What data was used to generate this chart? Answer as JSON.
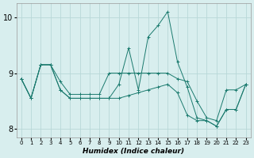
{
  "xlabel": "Humidex (Indice chaleur)",
  "bg_color": "#d8eeee",
  "grid_color": "#b8d8d8",
  "line_color": "#1a7a6e",
  "xlim": [
    -0.5,
    23.5
  ],
  "ylim": [
    7.85,
    10.25
  ],
  "yticks": [
    8,
    9,
    10
  ],
  "xticks": [
    0,
    1,
    2,
    3,
    4,
    5,
    6,
    7,
    8,
    9,
    10,
    11,
    12,
    13,
    14,
    15,
    16,
    17,
    18,
    19,
    20,
    21,
    22,
    23
  ],
  "line1": [
    8.9,
    8.55,
    9.15,
    9.15,
    8.85,
    8.62,
    8.62,
    8.62,
    8.62,
    9.0,
    9.0,
    9.0,
    9.0,
    9.0,
    9.0,
    9.0,
    8.9,
    8.85,
    8.5,
    8.2,
    8.15,
    8.7,
    8.7,
    8.8
  ],
  "line2": [
    8.9,
    8.55,
    9.15,
    9.15,
    8.7,
    8.55,
    8.55,
    8.55,
    8.55,
    8.55,
    8.8,
    9.45,
    8.7,
    9.65,
    9.85,
    10.1,
    9.2,
    8.75,
    8.2,
    8.15,
    8.05,
    8.35,
    8.35,
    8.8
  ],
  "line3": [
    8.9,
    8.55,
    9.15,
    9.15,
    8.7,
    8.55,
    8.55,
    8.55,
    8.55,
    8.55,
    8.55,
    8.6,
    8.65,
    8.7,
    8.75,
    8.8,
    8.65,
    8.25,
    8.15,
    8.15,
    8.05,
    8.35,
    8.35,
    8.8
  ]
}
